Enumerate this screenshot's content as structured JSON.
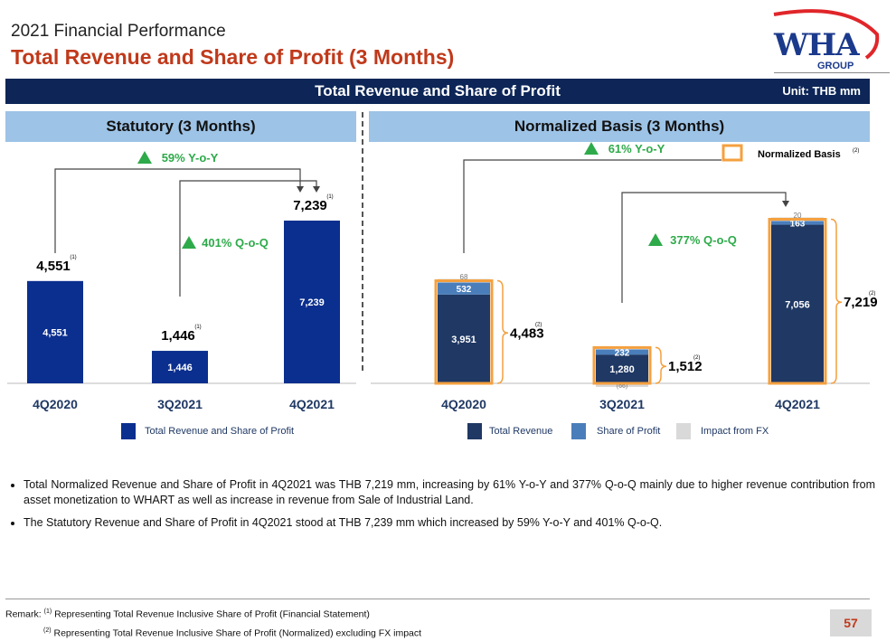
{
  "header": {
    "subtitle": "2021 Financial Performance",
    "title": "Total Revenue and Share of Profit (3 Months)"
  },
  "logo": {
    "brand": "WHA",
    "sub": "GROUP"
  },
  "banner": {
    "title": "Total Revenue and Share of Profit",
    "unit": "Unit: THB mm"
  },
  "colors": {
    "statutory_bar": "#0a2f8f",
    "total_revenue": "#1f3864",
    "share_of_profit": "#4a7ebb",
    "fx": "#d9d9d9",
    "normalized_border": "#f4a03f",
    "growth": "#2eaa4a"
  },
  "chart_data": [
    {
      "type": "bar",
      "title": "Statutory (3 Months)",
      "categories": [
        "4Q2020",
        "3Q2021",
        "4Q2021"
      ],
      "series": [
        {
          "name": "Total Revenue and Share of Profit",
          "values": [
            4551,
            1446,
            7239
          ]
        }
      ],
      "value_labels": [
        "4,551",
        "1,446",
        "7,239"
      ],
      "footnote_marks": [
        "(1)",
        "(1)",
        "(1)"
      ],
      "annotations": [
        {
          "text": "59% Y-o-Y",
          "from": "4Q2020",
          "to": "4Q2021"
        },
        {
          "text": "401% Q-o-Q",
          "from": "3Q2021",
          "to": "4Q2021"
        }
      ],
      "ylim": [
        0,
        7800
      ],
      "grid": false,
      "legend": "bottom"
    },
    {
      "type": "bar",
      "title": "Normalized Basis (3 Months)",
      "categories": [
        "4Q2020",
        "3Q2021",
        "4Q2021"
      ],
      "series": [
        {
          "name": "Total Revenue",
          "values": [
            3951,
            1280,
            7056
          ],
          "labels": [
            "3,951",
            "1,280",
            "7,056"
          ]
        },
        {
          "name": "Share of Profit",
          "values": [
            532,
            232,
            163
          ],
          "labels": [
            "532",
            "232",
            "163"
          ]
        },
        {
          "name": "Impact from FX",
          "values": [
            68,
            -66,
            20
          ],
          "labels": [
            "68",
            "(66)",
            "20"
          ]
        }
      ],
      "normalized_totals": [
        4483,
        1512,
        7219
      ],
      "normalized_labels": [
        "4,483",
        "1,512",
        "7,219"
      ],
      "footnote_marks": [
        "(2)",
        "(2)",
        "(2)"
      ],
      "normalized_legend": "Normalized Basis",
      "normalized_legend_mark": "(2)",
      "annotations": [
        {
          "text": "61% Y-o-Y",
          "from": "4Q2020",
          "to": "4Q2021"
        },
        {
          "text": "377% Q-o-Q",
          "from": "3Q2021",
          "to": "4Q2021"
        }
      ],
      "ylim": [
        0,
        7800
      ],
      "grid": false,
      "legend": "bottom"
    }
  ],
  "bullets": [
    "Total Normalized Revenue and Share of Profit in 4Q2021 was THB 7,219 mm, increasing by 61% Y-o-Y and 377% Q-o-Q mainly due to higher revenue contribution from asset monetization to WHART as well as increase in revenue from Sale of Industrial Land.",
    "The Statutory Revenue and Share of Profit in 4Q2021 stood at THB 7,239 mm which increased by 59% Y-o-Y and 401% Q-o-Q."
  ],
  "remark": {
    "label": "Remark:",
    "mark1": "(1)",
    "note1": "Representing Total Revenue Inclusive Share of Profit (Financial Statement)",
    "mark2": "(2)",
    "note2": "Representing Total Revenue Inclusive Share of Profit (Normalized) excluding FX impact"
  },
  "page_number": "57"
}
